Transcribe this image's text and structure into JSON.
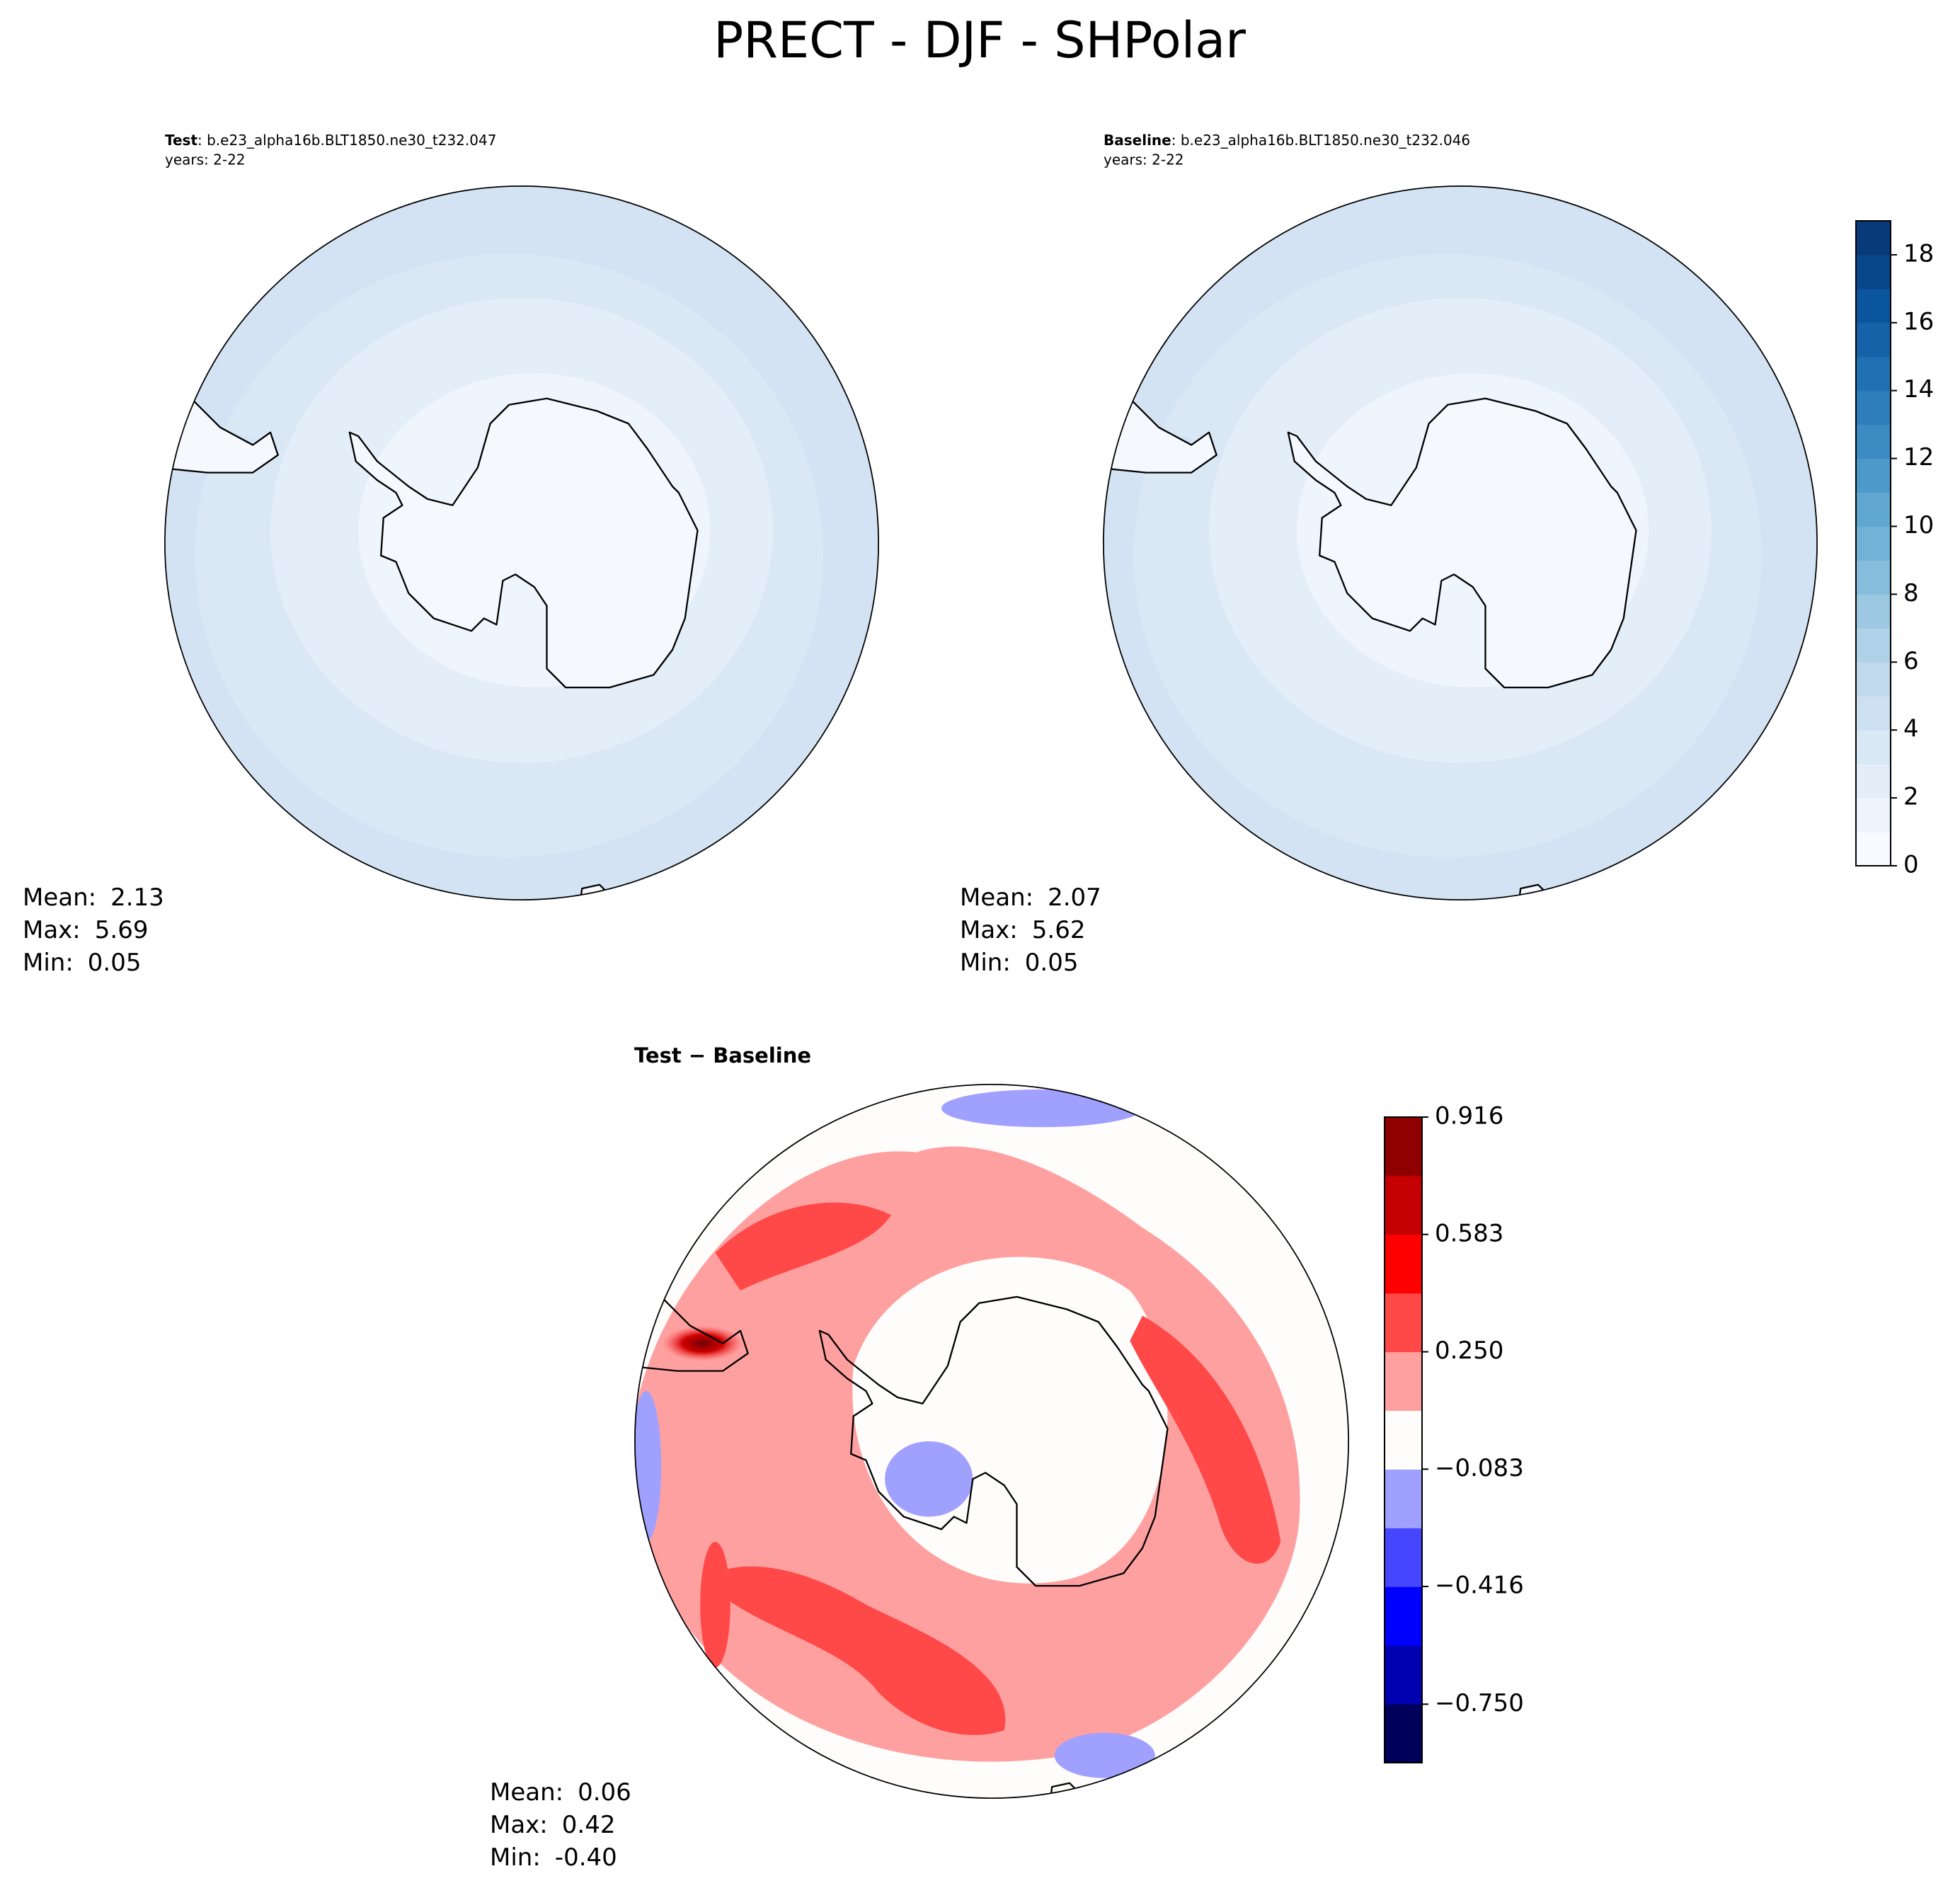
{
  "title": "PRECT - DJF - SHPolar",
  "chart_data": [
    {
      "type": "map",
      "label": "Test",
      "title": ": b.e23_alpha16b.BLT1850.ne30_t232.047",
      "subtitle": "years: 2-22",
      "stats": {
        "names": [
          "Mean:",
          "Max:",
          "Min:"
        ],
        "values": [
          2.13,
          5.69,
          0.05
        ]
      }
    },
    {
      "type": "map",
      "label": "Baseline",
      "title": ": b.e23_alpha16b.BLT1850.ne30_t232.046",
      "subtitle": "years: 2-22",
      "stats": {
        "names": [
          "Mean:",
          "Max:",
          "Min:"
        ],
        "values": [
          2.07,
          5.62,
          0.05
        ]
      }
    },
    {
      "type": "diffmap",
      "title": "Test − Baseline",
      "stats": {
        "names": [
          "Mean:",
          "Max:",
          "Min:"
        ],
        "values": [
          0.06,
          0.42,
          -0.4
        ],
        "value_labels": [
          "0.06",
          "0.42",
          "-0.40"
        ]
      }
    }
  ],
  "colorbars": [
    {
      "ylim": [
        0,
        19
      ],
      "yticks": [
        0,
        2,
        4,
        6,
        8,
        10,
        12,
        14,
        16,
        18
      ],
      "colors": [
        "#f7fbff",
        "#eef5fc",
        "#e3eef9",
        "#d9e8f5",
        "#cde0f1",
        "#c1d9ed",
        "#b0d2e8",
        "#9cc9e1",
        "#87bddc",
        "#72b2d7",
        "#5fa6d1",
        "#4d99ca",
        "#3c8bc3",
        "#2e7ebc",
        "#2070b4",
        "#1562a9",
        "#0b559f",
        "#08468a",
        "#083a7a"
      ]
    },
    {
      "ylim": [
        -0.916,
        0.916
      ],
      "yticks": [
        {
          "value": -0.75,
          "label": "−0.750"
        },
        {
          "value": -0.416,
          "label": "−0.416"
        },
        {
          "value": -0.083,
          "label": "−0.083"
        },
        {
          "value": 0.25,
          "label": "0.250"
        },
        {
          "value": 0.583,
          "label": "0.583"
        },
        0.916
      ],
      "colors": [
        "#00005a",
        "#0000b0",
        "#0000ff",
        "#4646ff",
        "#a0a0ff",
        "#fffcfc",
        "#ffa0a0",
        "#ff4848",
        "#ff0000",
        "#c40000",
        "#900000"
      ]
    }
  ]
}
